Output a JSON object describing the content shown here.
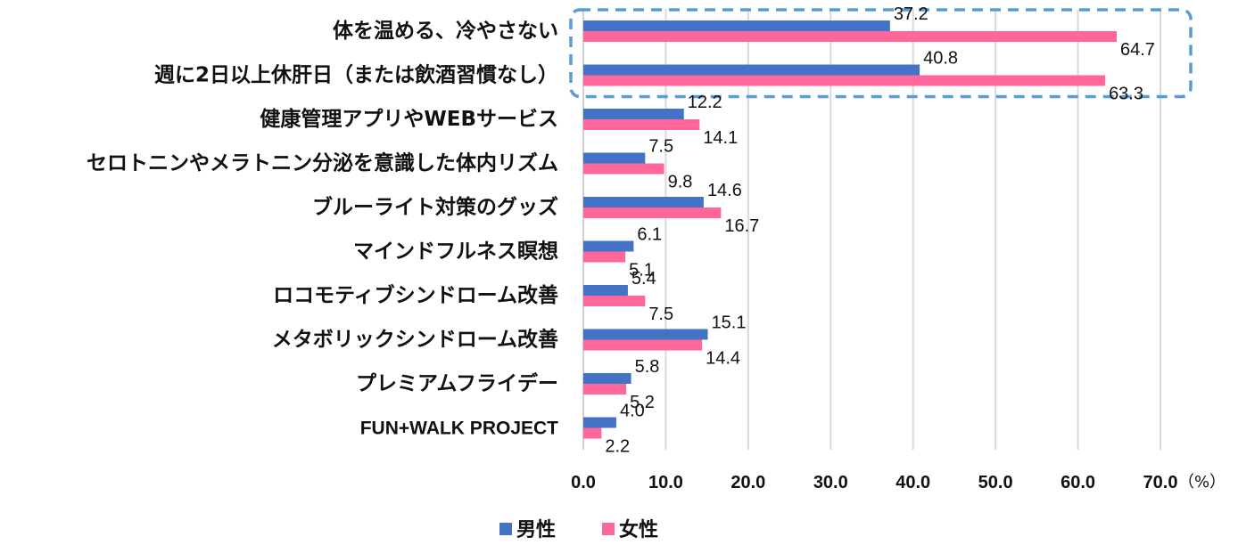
{
  "chart_data": {
    "type": "bar",
    "orientation": "horizontal",
    "categories": [
      "体を温める、冷やさない",
      "週に2日以上休肝日（または飲酒習慣なし）",
      "健康管理アプリやWEBサービス",
      "セロトニンやメラトニン分泌を意識した体内リズム",
      "ブルーライト対策のグッズ",
      "マインドフルネス瞑想",
      "ロコモティブシンドローム改善",
      "メタボリックシンドローム改善",
      "プレミアムフライデー",
      "FUN+WALK PROJECT"
    ],
    "series": [
      {
        "name": "男性",
        "color": "#4472C4",
        "values": [
          37.2,
          40.8,
          12.2,
          7.5,
          14.6,
          6.1,
          5.4,
          15.1,
          5.8,
          4.0
        ],
        "labels": [
          "37.2",
          "40.8",
          "12.2",
          "7.5",
          "14.6",
          "6.1",
          "5.4",
          "15.1",
          "5.8",
          "4.0"
        ]
      },
      {
        "name": "女性",
        "color": "#FF6699",
        "values": [
          64.7,
          63.3,
          14.1,
          9.8,
          16.7,
          5.1,
          7.5,
          14.4,
          5.2,
          2.2
        ],
        "labels": [
          "64.7",
          "63.3",
          "14.1",
          "9.8",
          "16.7",
          "5.1",
          "7.5",
          "14.4",
          "5.2",
          "2.2"
        ]
      }
    ],
    "xlim": [
      0,
      70
    ],
    "xticks": [
      "0.0",
      "10.0",
      "20.0",
      "30.0",
      "40.0",
      "50.0",
      "60.0",
      "70.0"
    ],
    "unit": "（%）",
    "grid": true,
    "legend_position": "bottom",
    "highlight": {
      "categories": [
        0,
        1
      ],
      "style": "dashed-box",
      "color": "#5B9BD5"
    }
  }
}
